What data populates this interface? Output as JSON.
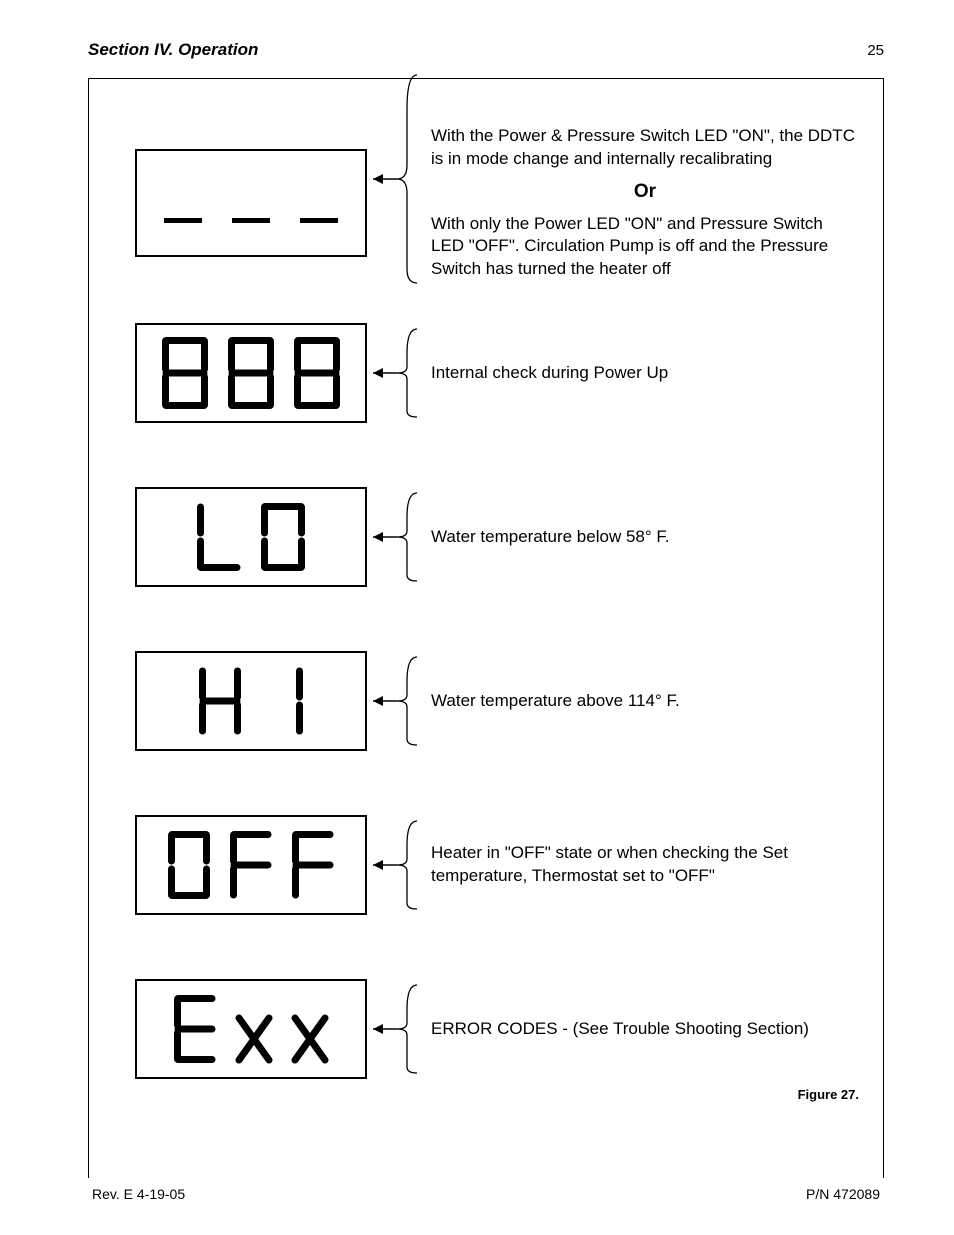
{
  "header": {
    "section_title": "Section IV.   Operation",
    "page_number": "25"
  },
  "rows": [
    {
      "display_type": "dashes",
      "desc_top": "With the Power & Pressure Switch LED \"ON\", the DDTC is in mode change and internally recalibrating",
      "or_label": "Or",
      "desc_bottom": "With only the Power LED \"ON\" and Pressure Switch LED \"OFF\". Circulation Pump is off and the Pressure Switch has turned the heater off"
    },
    {
      "display_type": "seg",
      "code": "888",
      "desc": "Internal check during Power Up"
    },
    {
      "display_type": "seg",
      "code": "LO",
      "desc": "Water temperature below 58° F."
    },
    {
      "display_type": "seg",
      "code": "HI",
      "desc": "Water temperature above 114° F."
    },
    {
      "display_type": "seg",
      "code": "OFF",
      "desc": "Heater in \"OFF\" state or when checking the Set temperature, Thermostat set to \"OFF\""
    },
    {
      "display_type": "seg",
      "code": "EXX",
      "desc": "ERROR CODES - (See Trouble Shooting Section)"
    }
  ],
  "figure_label": "Figure 27.",
  "footer": {
    "rev": "Rev. E   4-19-05",
    "pn": "P/N   472089"
  },
  "style": {
    "seg_color": "#000000",
    "seg_stroke": 7,
    "brace_stroke": 1.3,
    "arrow_stroke": 1.5
  }
}
